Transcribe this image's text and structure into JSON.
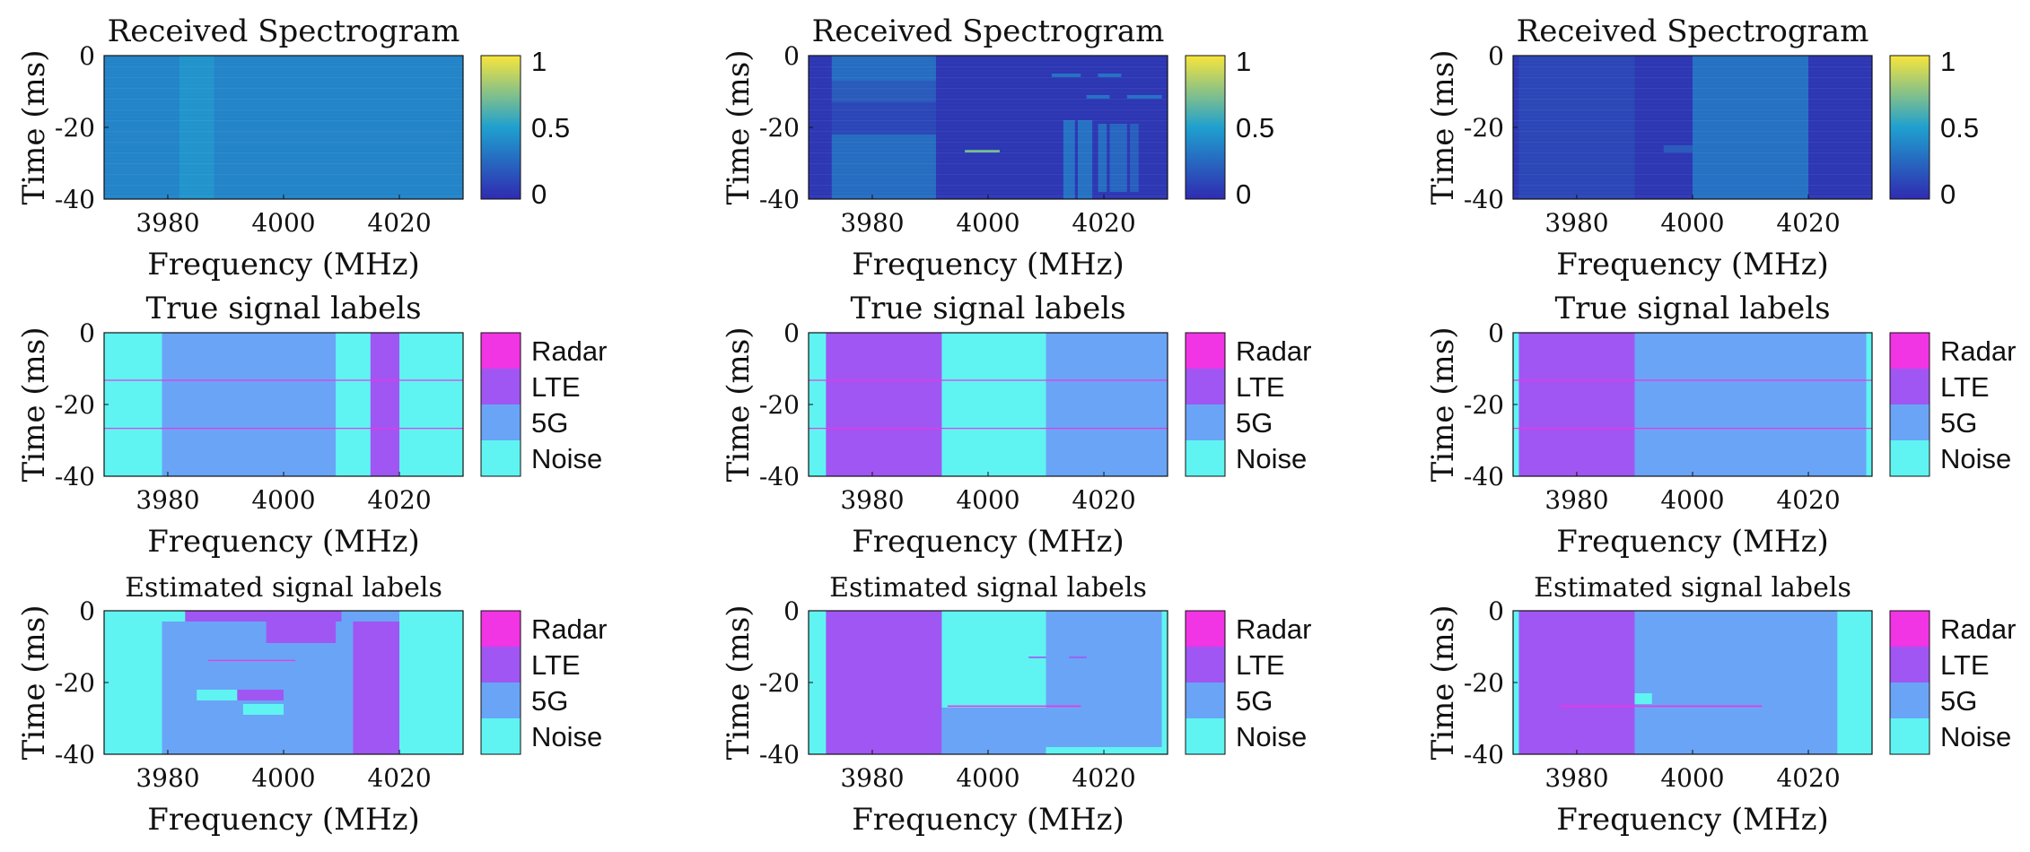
{
  "colors": {
    "Noise": "#5ff4f2",
    "5G": "#6aa4f6",
    "LTE": "#a056f2",
    "Radar": "#f134e4",
    "spec_low": "#2f2bb0",
    "spec_mid": "#1fa0cf",
    "spec_high": "#f8e53b"
  },
  "chart_data": [
    {
      "type": "heatmap",
      "id": "spec1",
      "title": "Received Spectrogram",
      "xlabel": "Frequency (MHz)",
      "ylabel": "Time (ms)",
      "xticks": [
        3980,
        4000,
        4020
      ],
      "yticks": [
        0,
        -20,
        -40
      ],
      "xlim": [
        3969,
        4031
      ],
      "ylim": [
        -40,
        0
      ],
      "colorbar": {
        "type": "continuous",
        "ticks": [
          "1",
          "0.5",
          "0"
        ],
        "range": [
          0,
          1
        ]
      },
      "background_level": 0.38,
      "blocks": [
        {
          "x": [
            3969,
            4031
          ],
          "y": [
            -40,
            0
          ],
          "level": 0.38
        },
        {
          "x": [
            3982,
            3988
          ],
          "y": [
            -40,
            0
          ],
          "level": 0.45
        }
      ]
    },
    {
      "type": "heatmap",
      "id": "spec2",
      "title": "Received Spectrogram",
      "xlabel": "Frequency (MHz)",
      "ylabel": "Time (ms)",
      "xticks": [
        3980,
        4000,
        4020
      ],
      "yticks": [
        0,
        -20,
        -40
      ],
      "xlim": [
        3969,
        4031
      ],
      "ylim": [
        -40,
        0
      ],
      "colorbar": {
        "type": "continuous",
        "ticks": [
          "1",
          "0.5",
          "0"
        ],
        "range": [
          0,
          1
        ]
      },
      "background_level": 0.05,
      "blocks": [
        {
          "x": [
            3973,
            3991
          ],
          "y": [
            -7,
            0
          ],
          "level": 0.28
        },
        {
          "x": [
            3973,
            3991
          ],
          "y": [
            -13,
            -7
          ],
          "level": 0.2
        },
        {
          "x": [
            3973,
            3991
          ],
          "y": [
            -22,
            -13
          ],
          "level": 0.12
        },
        {
          "x": [
            3973,
            3991
          ],
          "y": [
            -40,
            -22
          ],
          "level": 0.28
        },
        {
          "x": [
            4013,
            4015
          ],
          "y": [
            -40,
            -18
          ],
          "level": 0.3
        },
        {
          "x": [
            4015.5,
            4018
          ],
          "y": [
            -40,
            -18
          ],
          "level": 0.3
        },
        {
          "x": [
            4019,
            4020.5
          ],
          "y": [
            -38,
            -19
          ],
          "level": 0.28
        },
        {
          "x": [
            4021,
            4024
          ],
          "y": [
            -38,
            -19
          ],
          "level": 0.25
        },
        {
          "x": [
            4024.5,
            4026
          ],
          "y": [
            -38,
            -19
          ],
          "level": 0.22
        },
        {
          "x": [
            4011,
            4016
          ],
          "y": [
            -6,
            -5
          ],
          "level": 0.3
        },
        {
          "x": [
            4019,
            4023
          ],
          "y": [
            -6,
            -5
          ],
          "level": 0.3
        },
        {
          "x": [
            4017,
            4021
          ],
          "y": [
            -12,
            -11
          ],
          "level": 0.3
        },
        {
          "x": [
            4024,
            4030
          ],
          "y": [
            -12,
            -11
          ],
          "level": 0.3
        },
        {
          "x": [
            3996,
            4002
          ],
          "y": [
            -27,
            -26.3
          ],
          "level": 0.7
        }
      ]
    },
    {
      "type": "heatmap",
      "id": "spec3",
      "title": "Received Spectrogram",
      "xlabel": "Frequency (MHz)",
      "ylabel": "Time (ms)",
      "xticks": [
        3980,
        4000,
        4020
      ],
      "yticks": [
        0,
        -20,
        -40
      ],
      "xlim": [
        3969,
        4031
      ],
      "ylim": [
        -40,
        0
      ],
      "colorbar": {
        "type": "continuous",
        "ticks": [
          "1",
          "0.5",
          "0"
        ],
        "range": [
          0,
          1
        ]
      },
      "background_level": 0.05,
      "blocks": [
        {
          "x": [
            3970,
            3990
          ],
          "y": [
            -40,
            0
          ],
          "level": 0.12
        },
        {
          "x": [
            4000,
            4020
          ],
          "y": [
            -40,
            0
          ],
          "level": 0.3
        },
        {
          "x": [
            3995,
            4000
          ],
          "y": [
            -27,
            -25
          ],
          "level": 0.2
        }
      ]
    },
    {
      "type": "heatmap",
      "id": "true1",
      "title": "True signal labels",
      "xlabel": "Frequency (MHz)",
      "ylabel": "Time (ms)",
      "xticks": [
        3980,
        4000,
        4020
      ],
      "yticks": [
        0,
        -20,
        -40
      ],
      "xlim": [
        3969,
        4031
      ],
      "ylim": [
        -40,
        0
      ],
      "colorbar": {
        "type": "categorical",
        "labels": [
          "Radar",
          "LTE",
          "5G",
          "Noise"
        ]
      },
      "background": "Noise",
      "regions": [
        {
          "x": [
            3979,
            4009
          ],
          "y": [
            -40,
            0
          ],
          "label": "5G"
        },
        {
          "x": [
            4015,
            4020
          ],
          "y": [
            -40,
            0
          ],
          "label": "LTE"
        },
        {
          "x": [
            3969,
            4031
          ],
          "y": [
            -13.3,
            -13.1
          ],
          "label": "Radar"
        },
        {
          "x": [
            3969,
            4031
          ],
          "y": [
            -26.7,
            -26.5
          ],
          "label": "Radar"
        }
      ]
    },
    {
      "type": "heatmap",
      "id": "true2",
      "title": "True signal labels",
      "xlabel": "Frequency (MHz)",
      "ylabel": "Time (ms)",
      "xticks": [
        3980,
        4000,
        4020
      ],
      "yticks": [
        0,
        -20,
        -40
      ],
      "xlim": [
        3969,
        4031
      ],
      "ylim": [
        -40,
        0
      ],
      "colorbar": {
        "type": "categorical",
        "labels": [
          "Radar",
          "LTE",
          "5G",
          "Noise"
        ]
      },
      "background": "Noise",
      "regions": [
        {
          "x": [
            3972,
            3992
          ],
          "y": [
            -40,
            0
          ],
          "label": "LTE"
        },
        {
          "x": [
            4010,
            4031
          ],
          "y": [
            -40,
            0
          ],
          "label": "5G"
        },
        {
          "x": [
            3969,
            4031
          ],
          "y": [
            -13.3,
            -13.1
          ],
          "label": "Radar"
        },
        {
          "x": [
            3969,
            4031
          ],
          "y": [
            -26.7,
            -26.5
          ],
          "label": "Radar"
        }
      ]
    },
    {
      "type": "heatmap",
      "id": "true3",
      "title": "True signal labels",
      "xlabel": "Frequency (MHz)",
      "ylabel": "Time (ms)",
      "xticks": [
        3980,
        4000,
        4020
      ],
      "yticks": [
        0,
        -20,
        -40
      ],
      "xlim": [
        3969,
        4031
      ],
      "ylim": [
        -40,
        0
      ],
      "colorbar": {
        "type": "categorical",
        "labels": [
          "Radar",
          "LTE",
          "5G",
          "Noise"
        ]
      },
      "background": "Noise",
      "regions": [
        {
          "x": [
            3970,
            3990
          ],
          "y": [
            -40,
            0
          ],
          "label": "LTE"
        },
        {
          "x": [
            3990,
            4030
          ],
          "y": [
            -40,
            0
          ],
          "label": "5G"
        },
        {
          "x": [
            3969,
            4031
          ],
          "y": [
            -13.3,
            -13.1
          ],
          "label": "Radar"
        },
        {
          "x": [
            3969,
            4031
          ],
          "y": [
            -26.7,
            -26.5
          ],
          "label": "Radar"
        }
      ]
    },
    {
      "type": "heatmap",
      "id": "est1",
      "title": "Estimated signal labels",
      "xlabel": "Frequency (MHz)",
      "ylabel": "Time (ms)",
      "xticks": [
        3980,
        4000,
        4020
      ],
      "yticks": [
        0,
        -20,
        -40
      ],
      "xlim": [
        3969,
        4031
      ],
      "ylim": [
        -40,
        0
      ],
      "colorbar": {
        "type": "categorical",
        "labels": [
          "Radar",
          "LTE",
          "5G",
          "Noise"
        ]
      },
      "background": "Noise",
      "regions": [
        {
          "x": [
            3979,
            4010
          ],
          "y": [
            -40,
            -3
          ],
          "label": "5G"
        },
        {
          "x": [
            3983,
            4010
          ],
          "y": [
            -3,
            0
          ],
          "label": "LTE"
        },
        {
          "x": [
            3997,
            4009
          ],
          "y": [
            -9,
            -3
          ],
          "label": "LTE"
        },
        {
          "x": [
            4010,
            4020
          ],
          "y": [
            -40,
            0
          ],
          "label": "5G"
        },
        {
          "x": [
            4012,
            4020
          ],
          "y": [
            -40,
            -3
          ],
          "label": "LTE"
        },
        {
          "x": [
            3985,
            3992
          ],
          "y": [
            -25,
            -22
          ],
          "label": "Noise"
        },
        {
          "x": [
            3993,
            4000
          ],
          "y": [
            -29,
            -26
          ],
          "label": "Noise"
        },
        {
          "x": [
            3987,
            4002
          ],
          "y": [
            -14,
            -13.7
          ],
          "label": "Radar"
        },
        {
          "x": [
            3992,
            4000
          ],
          "y": [
            -25,
            -22
          ],
          "label": "LTE"
        }
      ]
    },
    {
      "type": "heatmap",
      "id": "est2",
      "title": "Estimated signal labels",
      "xlabel": "Frequency (MHz)",
      "ylabel": "Time (ms)",
      "xticks": [
        3980,
        4000,
        4020
      ],
      "yticks": [
        0,
        -20,
        -40
      ],
      "xlim": [
        3969,
        4031
      ],
      "ylim": [
        -40,
        0
      ],
      "colorbar": {
        "type": "categorical",
        "labels": [
          "Radar",
          "LTE",
          "5G",
          "Noise"
        ]
      },
      "background": "Noise",
      "regions": [
        {
          "x": [
            3972,
            3992
          ],
          "y": [
            -40,
            0
          ],
          "label": "LTE"
        },
        {
          "x": [
            3992,
            4010
          ],
          "y": [
            -40,
            -27
          ],
          "label": "5G"
        },
        {
          "x": [
            4010,
            4030
          ],
          "y": [
            -38,
            0
          ],
          "label": "5G"
        },
        {
          "x": [
            3993,
            4010
          ],
          "y": [
            -22,
            -20
          ],
          "label": "Noise"
        },
        {
          "x": [
            3993,
            4016
          ],
          "y": [
            -26.8,
            -26.4
          ],
          "label": "Radar"
        },
        {
          "x": [
            4007,
            4010
          ],
          "y": [
            -13.2,
            -12.8
          ],
          "label": "LTE"
        },
        {
          "x": [
            4014,
            4017
          ],
          "y": [
            -13.2,
            -12.8
          ],
          "label": "LTE"
        }
      ]
    },
    {
      "type": "heatmap",
      "id": "est3",
      "title": "Estimated signal labels",
      "xlabel": "Frequency (MHz)",
      "ylabel": "Time (ms)",
      "xticks": [
        3980,
        4000,
        4020
      ],
      "yticks": [
        0,
        -20,
        -40
      ],
      "xlim": [
        3969,
        4031
      ],
      "ylim": [
        -40,
        0
      ],
      "colorbar": {
        "type": "categorical",
        "labels": [
          "Radar",
          "LTE",
          "5G",
          "Noise"
        ]
      },
      "background": "Noise",
      "regions": [
        {
          "x": [
            3970,
            3990
          ],
          "y": [
            -40,
            0
          ],
          "label": "LTE"
        },
        {
          "x": [
            3990,
            4025
          ],
          "y": [
            -40,
            0
          ],
          "label": "5G"
        },
        {
          "x": [
            3990,
            3993
          ],
          "y": [
            -26,
            -23
          ],
          "label": "Noise"
        },
        {
          "x": [
            3977,
            4012
          ],
          "y": [
            -26.8,
            -26.4
          ],
          "label": "Radar"
        }
      ]
    }
  ]
}
